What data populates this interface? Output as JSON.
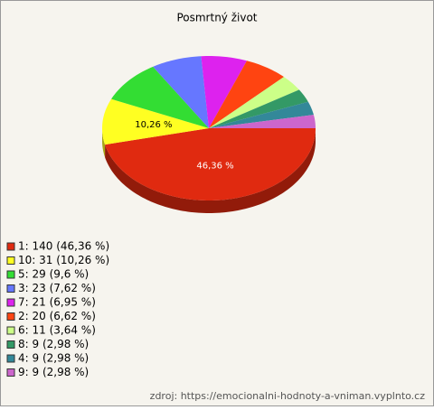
{
  "chart_data": {
    "type": "pie",
    "title": "Posmrtný život",
    "categories": [
      "1: 140 (46,36 %)",
      "10: 31 (10,26 %)",
      "5: 29 (9,6 %)",
      "3: 23 (7,62 %)",
      "7: 21 (6,95 %)",
      "2: 20 (6,62 %)",
      "6: 11 (3,64 %)",
      "8: 9 (2,98 %)",
      "4: 9 (2,98 %)",
      "9: 9 (2,98 %)"
    ],
    "values": [
      140,
      31,
      29,
      23,
      21,
      20,
      11,
      9,
      9,
      9
    ],
    "value_labels": [
      "46,36 %",
      "10,26 %",
      null,
      null,
      null,
      null,
      null,
      null,
      null,
      null
    ],
    "colors": [
      "#e02a10",
      "#ffff22",
      "#33dd33",
      "#6677ff",
      "#dd22ee",
      "#ff4411",
      "#ccff88",
      "#339966",
      "#338899",
      "#cc66cc"
    ],
    "legend": "bottom-left",
    "source": "zdroj: https://emocionalni-hodnoty-a-vniman.vyplnto.cz"
  }
}
